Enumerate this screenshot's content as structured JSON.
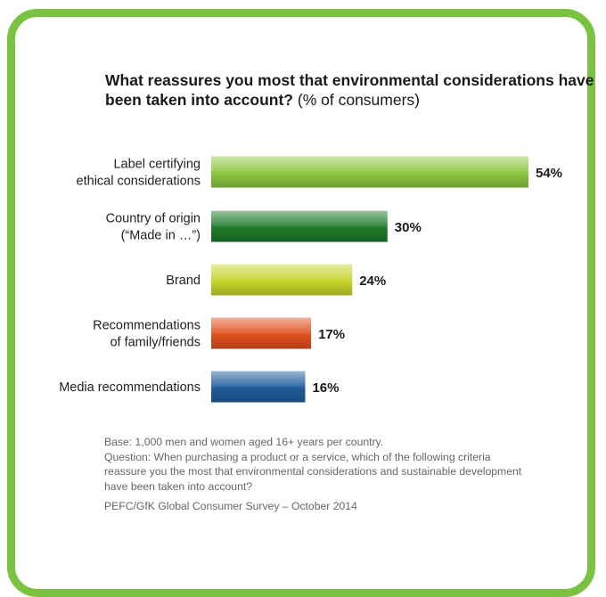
{
  "chart_data": {
    "type": "bar",
    "orientation": "horizontal",
    "title": "What reassures you most that environmental considerations have been taken into account?",
    "subtitle": "(% of consumers)",
    "categories": [
      [
        "Label certifying",
        "ethical considerations"
      ],
      [
        "Country of origin",
        "(“Made in …”)"
      ],
      [
        "Brand"
      ],
      [
        "Recommendations",
        "of family/friends"
      ],
      [
        "Media recommendations"
      ]
    ],
    "values": [
      54,
      30,
      24,
      17,
      16
    ],
    "value_labels": [
      "54%",
      "30%",
      "24%",
      "17%",
      "16%"
    ],
    "colors": [
      "#8cc63f",
      "#1e7a2c",
      "#c5d42a",
      "#e0501e",
      "#1f5c9a"
    ],
    "xlim": [
      0,
      54
    ],
    "grid": false,
    "legend": "none"
  },
  "notes": {
    "base": "Base: 1,000 men and women aged 16+ years per country.",
    "question": "Question: When purchasing a product or a service, which of the following criteria reassure you the most that environmental considerations and sustainable development have been taken into account?",
    "source": "PEFC/GfK Global Consumer Survey – October 2014"
  },
  "frame_color": "#7cc242"
}
